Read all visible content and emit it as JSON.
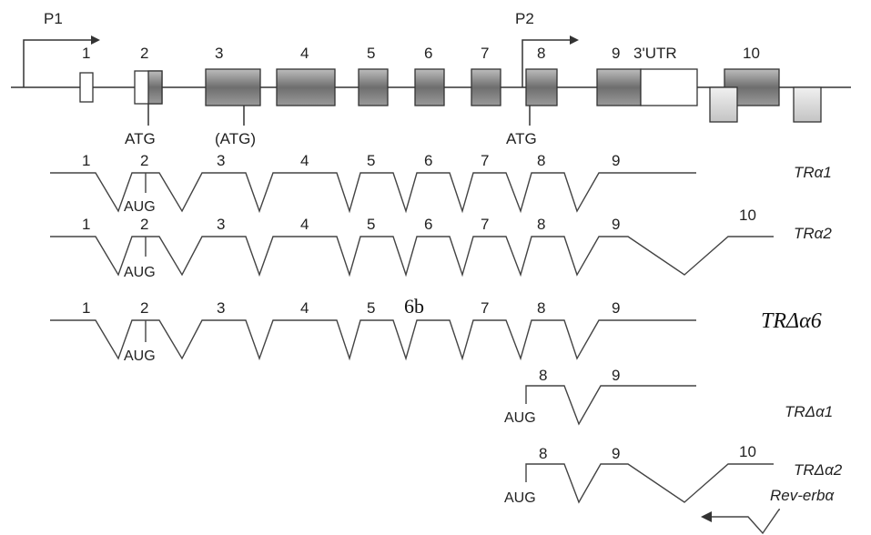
{
  "promoters": {
    "p1": "P1",
    "p2": "P2"
  },
  "exon_labels": [
    "1",
    "2",
    "3",
    "4",
    "5",
    "6",
    "7",
    "8",
    "9",
    "3'UTR",
    "10"
  ],
  "codon_labels": {
    "atg_exon2": "ATG",
    "atg_exon3": "(ATG)",
    "atg_exon8": "ATG"
  },
  "transcripts": [
    {
      "name": "TRα1",
      "exons": [
        "1",
        "2",
        "3",
        "4",
        "5",
        "6",
        "7",
        "8",
        "9"
      ],
      "start_codon": "AUG"
    },
    {
      "name": "TRα2",
      "exons": [
        "1",
        "2",
        "3",
        "4",
        "5",
        "6",
        "7",
        "8",
        "9",
        "10"
      ],
      "start_codon": "AUG"
    },
    {
      "name": "TRΔα6",
      "exons": [
        "1",
        "2",
        "3",
        "4",
        "5",
        "6b",
        "7",
        "8",
        "9"
      ],
      "start_codon": "AUG"
    },
    {
      "name": "TRΔα1",
      "exons": [
        "8",
        "9"
      ],
      "start_codon": "AUG"
    },
    {
      "name": "TRΔα2",
      "exons": [
        "8",
        "9",
        "10"
      ],
      "start_codon": "AUG"
    }
  ],
  "antisense": {
    "name": "Rev-erbα"
  },
  "colors": {
    "exon_fill": "#8a8a8a",
    "exon_light": "#d8d8d8",
    "line": "#333333"
  }
}
